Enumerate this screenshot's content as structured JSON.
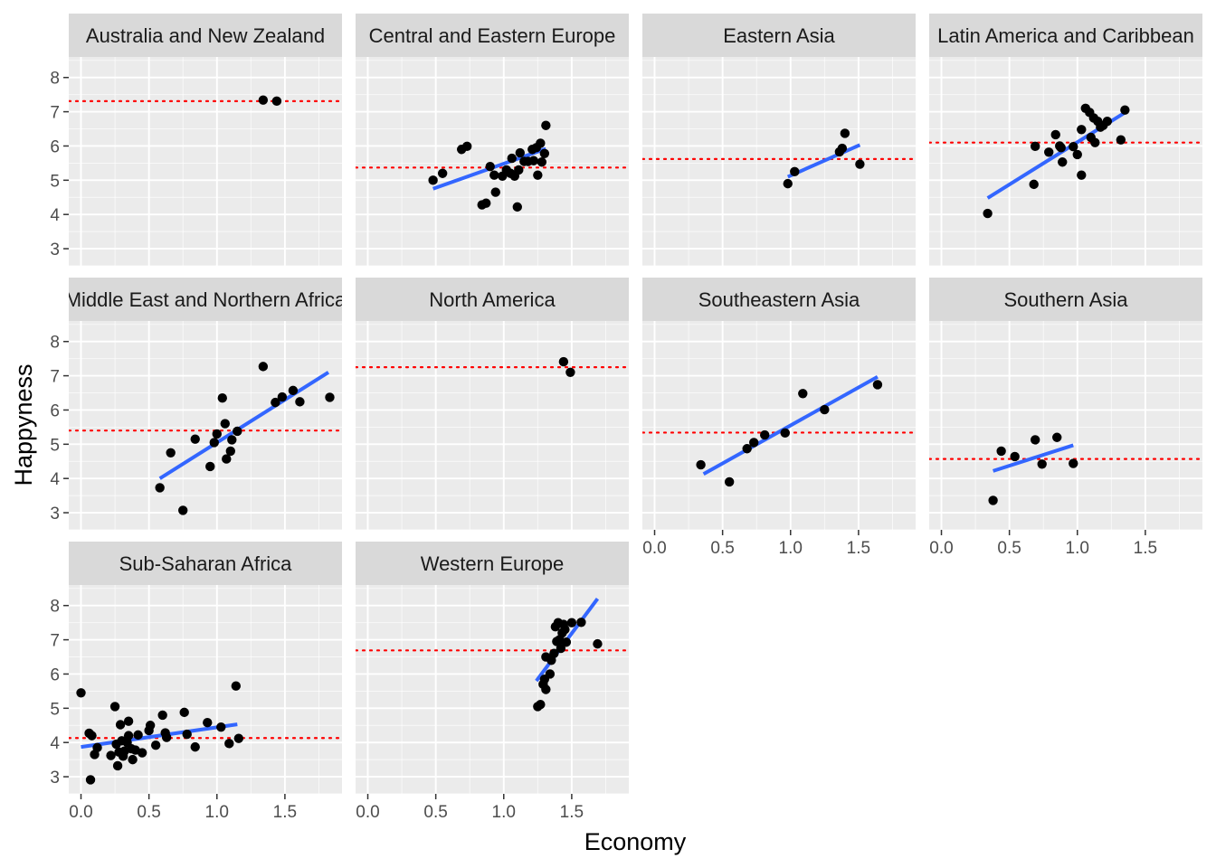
{
  "chart_data": {
    "type": "scatter",
    "xlabel": "Economy",
    "ylabel": "Happyness",
    "xlim": [
      -0.09,
      1.92
    ],
    "ylim": [
      2.5,
      8.6
    ],
    "x_ticks": [
      0.0,
      0.5,
      1.0,
      1.5
    ],
    "x_tick_labels": [
      "0.0",
      "0.5",
      "1.0",
      "1.5"
    ],
    "y_ticks": [
      3,
      4,
      5,
      6,
      7,
      8
    ],
    "y_tick_labels": [
      "3",
      "4",
      "5",
      "6",
      "7",
      "8"
    ],
    "grid": true,
    "colors": {
      "panel_bg": "#ebebeb",
      "strip_bg": "#d9d9d9",
      "grid_major": "#ffffff",
      "points": "#000000",
      "fit_line": "#3366ff",
      "mean_line": "#ff0000"
    },
    "panels": [
      {
        "region": "Australia and New Zealand",
        "mean": 7.31,
        "fit": null,
        "points": [
          [
            1.34,
            7.34
          ],
          [
            1.44,
            7.31
          ]
        ]
      },
      {
        "region": "Central and Eastern Europe",
        "mean": 5.37,
        "fit": [
          [
            0.48,
            4.75
          ],
          [
            1.31,
            5.92
          ]
        ],
        "points": [
          [
            0.48,
            5.0
          ],
          [
            0.55,
            5.2
          ],
          [
            0.69,
            5.9
          ],
          [
            0.73,
            5.99
          ],
          [
            0.84,
            4.28
          ],
          [
            0.87,
            4.33
          ],
          [
            0.9,
            5.4
          ],
          [
            0.93,
            5.15
          ],
          [
            0.94,
            4.65
          ],
          [
            0.99,
            5.12
          ],
          [
            1.02,
            5.3
          ],
          [
            1.05,
            5.2
          ],
          [
            1.06,
            5.64
          ],
          [
            1.08,
            5.12
          ],
          [
            1.1,
            4.22
          ],
          [
            1.11,
            5.3
          ],
          [
            1.12,
            5.8
          ],
          [
            1.15,
            5.55
          ],
          [
            1.18,
            5.55
          ],
          [
            1.21,
            5.9
          ],
          [
            1.22,
            5.57
          ],
          [
            1.24,
            5.95
          ],
          [
            1.25,
            5.15
          ],
          [
            1.27,
            6.08
          ],
          [
            1.28,
            5.53
          ],
          [
            1.3,
            5.78
          ],
          [
            1.31,
            6.6
          ]
        ]
      },
      {
        "region": "Eastern Asia",
        "mean": 5.62,
        "fit": [
          [
            0.98,
            5.1
          ],
          [
            1.51,
            6.03
          ]
        ],
        "points": [
          [
            0.98,
            4.9
          ],
          [
            1.03,
            5.25
          ],
          [
            1.36,
            5.83
          ],
          [
            1.38,
            5.93
          ],
          [
            1.4,
            6.37
          ],
          [
            1.51,
            5.47
          ]
        ]
      },
      {
        "region": "Latin America and Caribbean",
        "mean": 6.1,
        "fit": [
          [
            0.34,
            4.48
          ],
          [
            1.36,
            7.0
          ]
        ],
        "points": [
          [
            0.34,
            4.03
          ],
          [
            0.68,
            4.88
          ],
          [
            0.69,
            5.99
          ],
          [
            0.79,
            5.82
          ],
          [
            0.84,
            6.33
          ],
          [
            0.87,
            6.0
          ],
          [
            0.88,
            5.95
          ],
          [
            0.89,
            5.53
          ],
          [
            0.97,
            5.98
          ],
          [
            1.0,
            5.75
          ],
          [
            1.03,
            5.15
          ],
          [
            1.03,
            6.48
          ],
          [
            1.06,
            7.1
          ],
          [
            1.09,
            6.98
          ],
          [
            1.1,
            6.25
          ],
          [
            1.12,
            6.82
          ],
          [
            1.13,
            6.1
          ],
          [
            1.15,
            6.72
          ],
          [
            1.17,
            6.55
          ],
          [
            1.19,
            6.6
          ],
          [
            1.22,
            6.72
          ],
          [
            1.32,
            6.18
          ],
          [
            1.35,
            7.05
          ]
        ]
      },
      {
        "region": "Middle East and Northern Africa",
        "mean": 5.4,
        "fit": [
          [
            0.58,
            4.0
          ],
          [
            1.82,
            7.1
          ]
        ],
        "points": [
          [
            0.58,
            3.73
          ],
          [
            0.66,
            4.75
          ],
          [
            0.75,
            3.07
          ],
          [
            0.84,
            5.15
          ],
          [
            0.95,
            4.35
          ],
          [
            0.98,
            5.05
          ],
          [
            1.0,
            5.3
          ],
          [
            1.04,
            6.35
          ],
          [
            1.06,
            5.6
          ],
          [
            1.07,
            4.57
          ],
          [
            1.1,
            4.8
          ],
          [
            1.11,
            5.13
          ],
          [
            1.15,
            5.38
          ],
          [
            1.34,
            7.27
          ],
          [
            1.43,
            6.22
          ],
          [
            1.48,
            6.38
          ],
          [
            1.56,
            6.57
          ],
          [
            1.61,
            6.24
          ],
          [
            1.83,
            6.37
          ]
        ]
      },
      {
        "region": "North America",
        "mean": 7.25,
        "fit": null,
        "points": [
          [
            1.44,
            7.41
          ],
          [
            1.49,
            7.1
          ]
        ]
      },
      {
        "region": "Southeastern Asia",
        "mean": 5.34,
        "fit": [
          [
            0.36,
            4.13
          ],
          [
            1.64,
            6.97
          ]
        ],
        "points": [
          [
            0.34,
            4.4
          ],
          [
            0.55,
            3.9
          ],
          [
            0.68,
            4.87
          ],
          [
            0.73,
            5.05
          ],
          [
            0.81,
            5.27
          ],
          [
            0.96,
            5.33
          ],
          [
            1.09,
            6.48
          ],
          [
            1.25,
            6.01
          ],
          [
            1.64,
            6.74
          ]
        ]
      },
      {
        "region": "Southern Asia",
        "mean": 4.57,
        "fit": [
          [
            0.38,
            4.22
          ],
          [
            0.97,
            4.97
          ]
        ],
        "points": [
          [
            0.38,
            3.36
          ],
          [
            0.44,
            4.8
          ],
          [
            0.54,
            4.64
          ],
          [
            0.69,
            5.13
          ],
          [
            0.74,
            4.42
          ],
          [
            0.85,
            5.2
          ],
          [
            0.97,
            4.44
          ]
        ]
      },
      {
        "region": "Sub-Saharan Africa",
        "mean": 4.13,
        "fit": [
          [
            0.0,
            3.87
          ],
          [
            1.15,
            4.53
          ]
        ],
        "points": [
          [
            0.0,
            5.45
          ],
          [
            0.06,
            4.27
          ],
          [
            0.07,
            2.91
          ],
          [
            0.08,
            4.2
          ],
          [
            0.1,
            3.65
          ],
          [
            0.12,
            3.85
          ],
          [
            0.22,
            3.62
          ],
          [
            0.25,
            5.05
          ],
          [
            0.26,
            3.95
          ],
          [
            0.27,
            3.32
          ],
          [
            0.28,
            3.72
          ],
          [
            0.29,
            4.52
          ],
          [
            0.3,
            4.05
          ],
          [
            0.31,
            3.6
          ],
          [
            0.32,
            3.75
          ],
          [
            0.34,
            4.0
          ],
          [
            0.35,
            4.2
          ],
          [
            0.35,
            4.62
          ],
          [
            0.37,
            3.82
          ],
          [
            0.38,
            3.5
          ],
          [
            0.4,
            3.78
          ],
          [
            0.42,
            4.22
          ],
          [
            0.45,
            3.7
          ],
          [
            0.5,
            4.35
          ],
          [
            0.51,
            4.5
          ],
          [
            0.55,
            3.92
          ],
          [
            0.6,
            4.8
          ],
          [
            0.62,
            4.28
          ],
          [
            0.63,
            4.15
          ],
          [
            0.76,
            4.88
          ],
          [
            0.78,
            4.24
          ],
          [
            0.84,
            3.87
          ],
          [
            0.93,
            4.58
          ],
          [
            1.03,
            4.45
          ],
          [
            1.09,
            3.97
          ],
          [
            1.14,
            5.65
          ],
          [
            1.16,
            4.12
          ]
        ]
      },
      {
        "region": "Western Europe",
        "mean": 6.69,
        "fit": [
          [
            1.24,
            5.8
          ],
          [
            1.69,
            8.2
          ]
        ],
        "points": [
          [
            1.25,
            5.05
          ],
          [
            1.27,
            5.11
          ],
          [
            1.29,
            5.7
          ],
          [
            1.3,
            5.85
          ],
          [
            1.31,
            5.55
          ],
          [
            1.31,
            6.5
          ],
          [
            1.34,
            6.0
          ],
          [
            1.35,
            6.4
          ],
          [
            1.37,
            6.6
          ],
          [
            1.38,
            7.38
          ],
          [
            1.39,
            6.95
          ],
          [
            1.4,
            7.5
          ],
          [
            1.41,
            7.0
          ],
          [
            1.42,
            6.75
          ],
          [
            1.43,
            7.2
          ],
          [
            1.44,
            7.45
          ],
          [
            1.45,
            7.3
          ],
          [
            1.46,
            6.93
          ],
          [
            1.5,
            7.5
          ],
          [
            1.57,
            7.51
          ],
          [
            1.69,
            6.88
          ]
        ]
      }
    ]
  }
}
